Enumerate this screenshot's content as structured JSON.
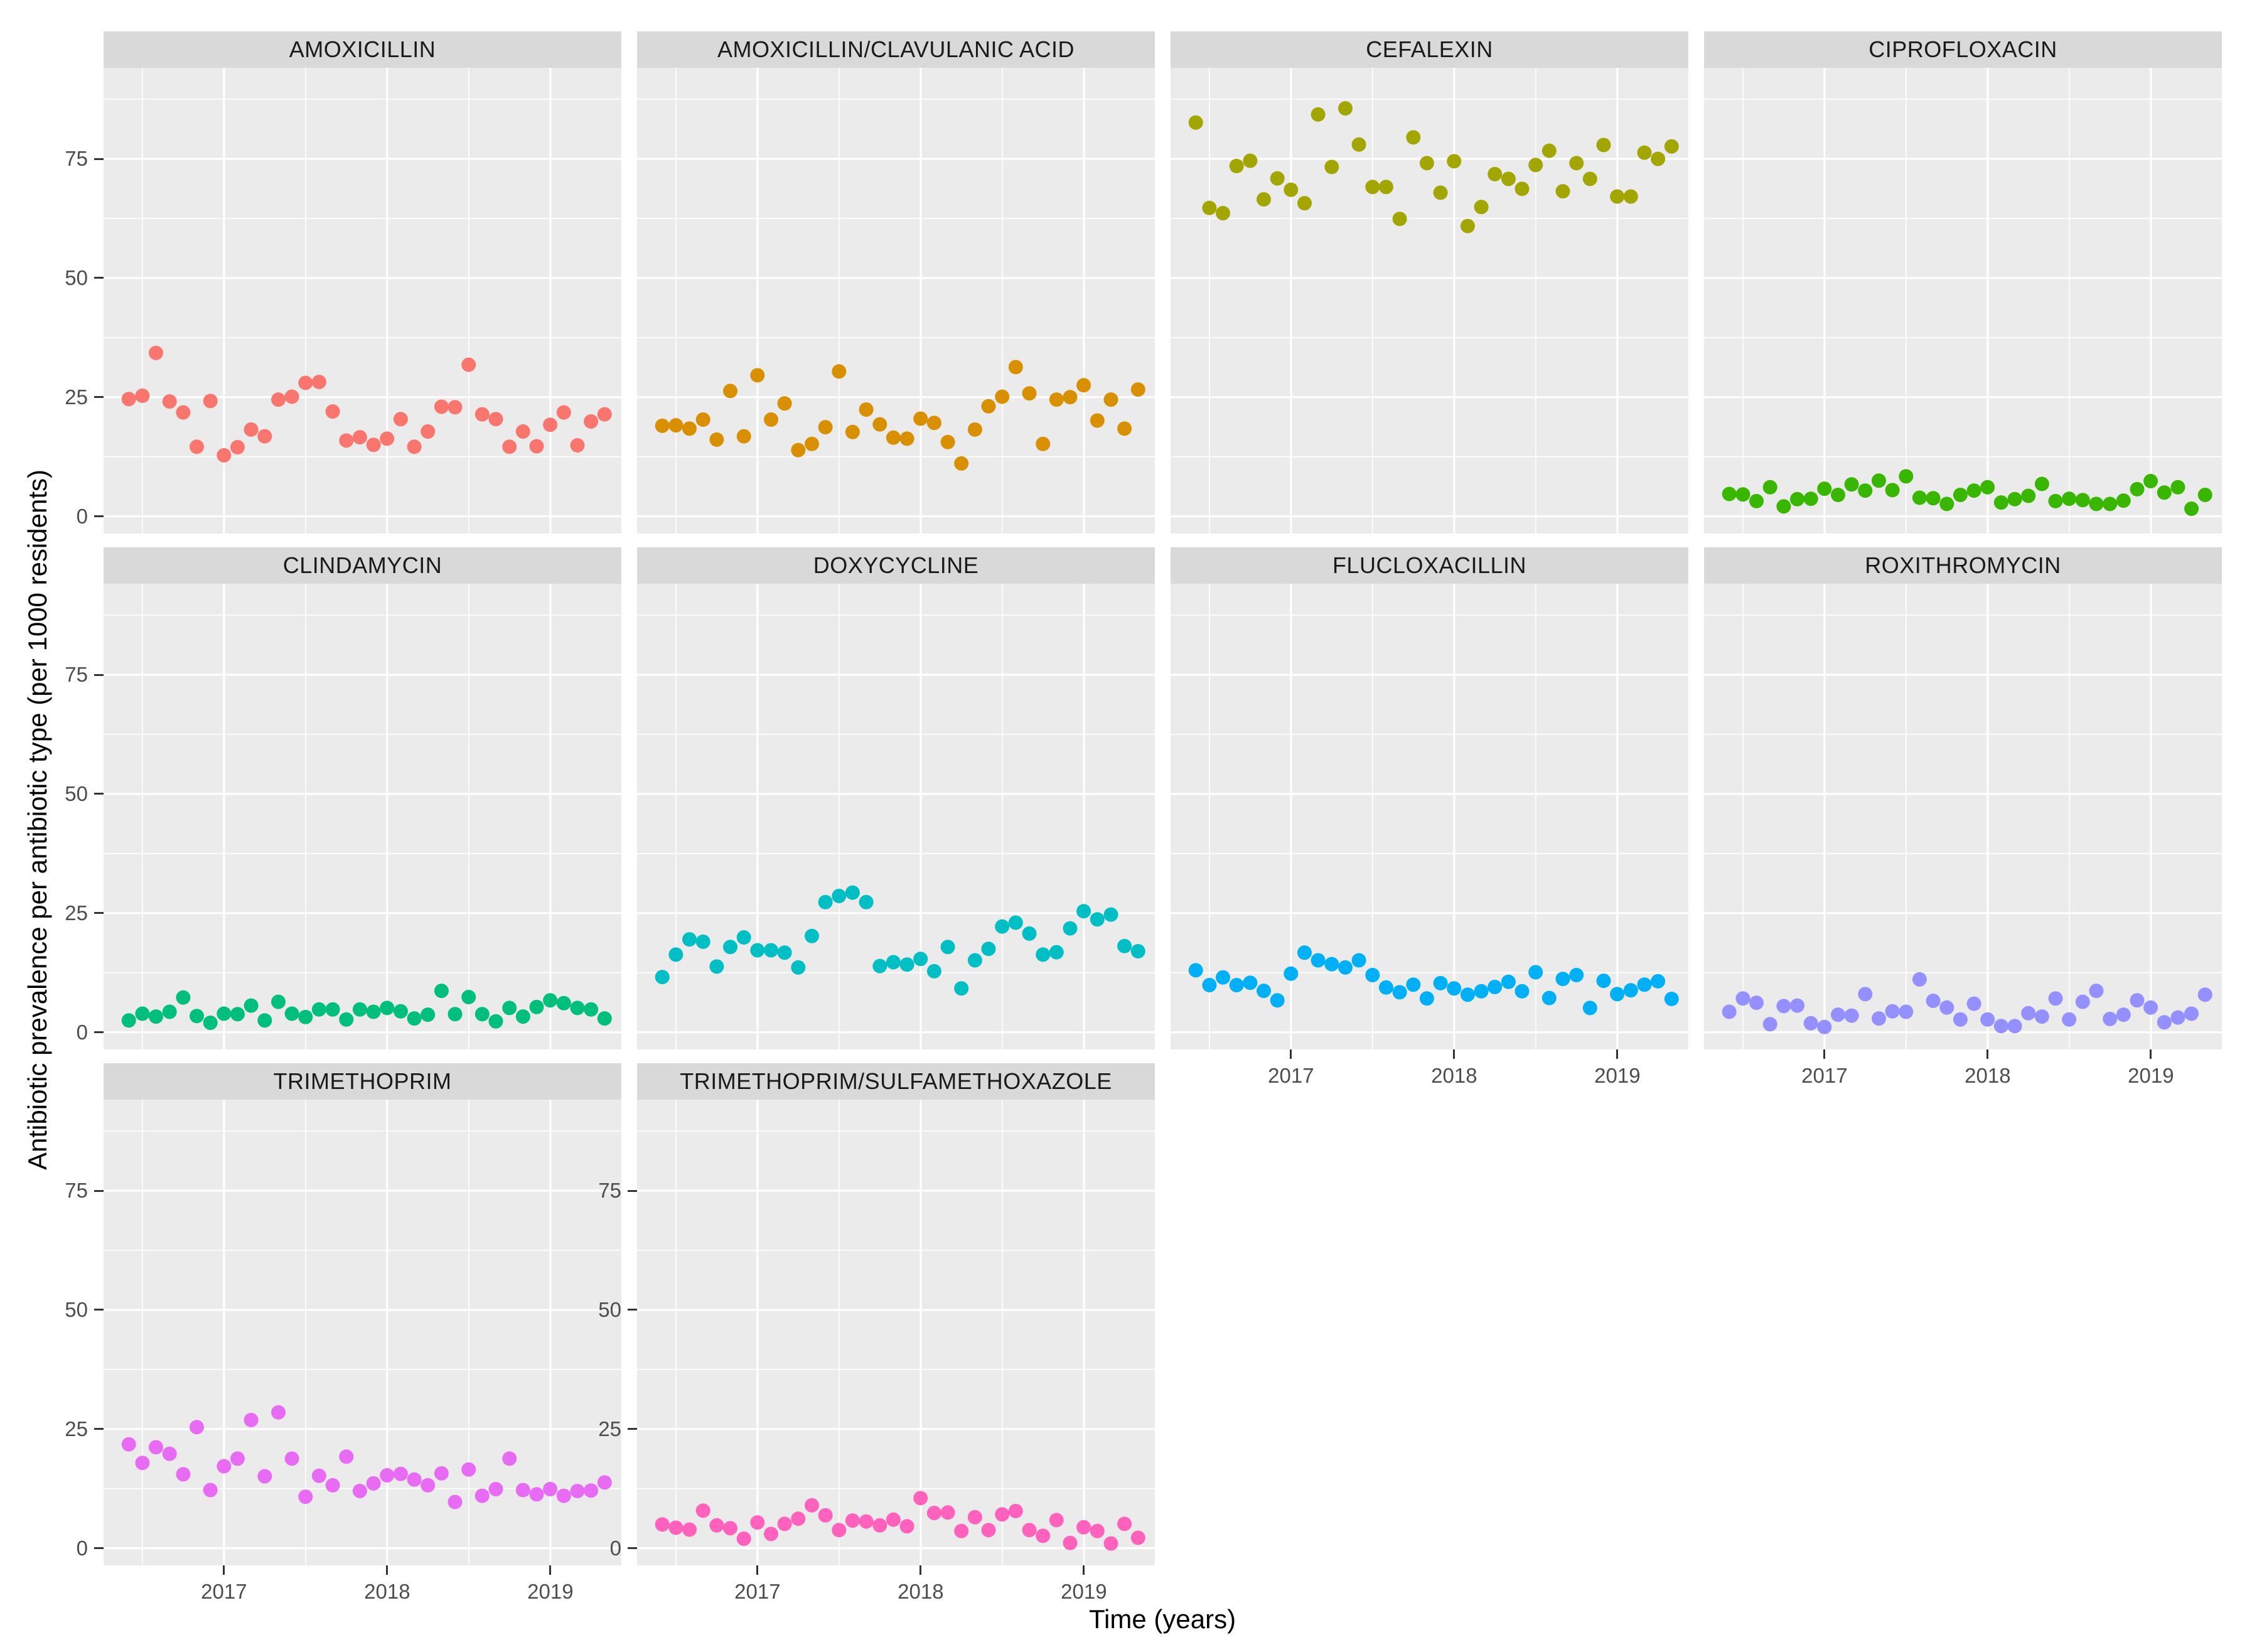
{
  "chart_data": {
    "type": "scatter",
    "title": "",
    "xlabel": "Time (years)",
    "ylabel": "Antibiotic prevalence per antibiotic type (per 1000 residents)",
    "x_description": "monthly observations from mid-2016 to mid-2019",
    "x_start": 2016.4167,
    "x_step": 0.0833,
    "xlim": [
      2016.262,
      2019.435
    ],
    "ylim": [
      -3.6,
      94.1
    ],
    "x_ticks": [
      {
        "value": 2017,
        "label": "2017"
      },
      {
        "value": 2018,
        "label": "2018"
      },
      {
        "value": 2019,
        "label": "2019"
      }
    ],
    "x_minor_ticks": [
      2016.5,
      2017.5,
      2018.5
    ],
    "y_ticks": [
      {
        "value": 0,
        "label": "0"
      },
      {
        "value": 25,
        "label": "25"
      },
      {
        "value": 50,
        "label": "50"
      },
      {
        "value": 75,
        "label": "75"
      }
    ],
    "y_minor_ticks": [
      12.5,
      37.5,
      62.5,
      87.5
    ],
    "grid": "white major and minor gridlines on gray panels",
    "legend": "none",
    "facets": [
      {
        "label": "AMOXICILLIN",
        "color": "#F8766D",
        "col": 0,
        "row": 0,
        "show_x_axis": false,
        "show_y_axis": true,
        "values": [
          24.6,
          25.3,
          34.3,
          24.1,
          21.8,
          14.6,
          24.2,
          12.8,
          14.5,
          18.2,
          16.8,
          24.5,
          25.1,
          28.0,
          28.2,
          22.0,
          15.9,
          16.6,
          15.0,
          16.3,
          20.4,
          14.6,
          17.8,
          23.0,
          22.9,
          31.8,
          21.4,
          20.4,
          14.6,
          17.8,
          14.7,
          19.2,
          21.8,
          14.9,
          19.9,
          21.4
        ]
      },
      {
        "label": "AMOXICILLIN/CLAVULANIC ACID",
        "color": "#D89000",
        "col": 1,
        "row": 0,
        "show_x_axis": false,
        "show_y_axis": false,
        "values": [
          19.0,
          19.1,
          18.4,
          20.3,
          16.1,
          26.3,
          16.8,
          29.6,
          20.3,
          23.7,
          13.9,
          15.2,
          18.7,
          30.4,
          17.7,
          22.4,
          19.3,
          16.5,
          16.3,
          20.5,
          19.6,
          15.6,
          11.1,
          18.2,
          23.1,
          25.1,
          31.3,
          25.8,
          15.2,
          24.5,
          25.0,
          27.5,
          20.1,
          24.5,
          18.4,
          26.6
        ]
      },
      {
        "label": "CEFALEXIN",
        "color": "#A3A500",
        "col": 2,
        "row": 0,
        "show_x_axis": false,
        "show_y_axis": false,
        "values": [
          82.6,
          64.7,
          63.6,
          73.5,
          74.6,
          66.5,
          70.9,
          68.5,
          65.7,
          84.3,
          73.3,
          85.6,
          78.0,
          69.1,
          69.1,
          62.4,
          79.5,
          74.1,
          67.9,
          74.5,
          60.9,
          64.9,
          71.8,
          70.8,
          68.7,
          73.7,
          76.7,
          68.2,
          74.1,
          70.8,
          77.9,
          67.1,
          67.1,
          76.3,
          75.0,
          77.6
        ]
      },
      {
        "label": "CIPROFLOXACIN",
        "color": "#39B600",
        "col": 3,
        "row": 0,
        "show_x_axis": false,
        "show_y_axis": false,
        "values": [
          4.7,
          4.6,
          3.2,
          6.1,
          2.1,
          3.6,
          3.7,
          5.8,
          4.5,
          6.7,
          5.4,
          7.5,
          5.5,
          8.4,
          3.9,
          3.8,
          2.6,
          4.5,
          5.4,
          6.1,
          2.9,
          3.6,
          4.3,
          6.8,
          3.2,
          3.7,
          3.4,
          2.6,
          2.6,
          3.3,
          5.7,
          7.4,
          5.0,
          6.1,
          1.6,
          4.5
        ]
      },
      {
        "label": "CLINDAMYCIN",
        "color": "#00BF7D",
        "col": 0,
        "row": 1,
        "show_x_axis": false,
        "show_y_axis": true,
        "values": [
          2.5,
          3.9,
          3.3,
          4.3,
          7.3,
          3.4,
          2.0,
          3.9,
          3.8,
          5.6,
          2.5,
          6.4,
          3.9,
          3.2,
          4.8,
          4.8,
          2.7,
          4.8,
          4.3,
          5.1,
          4.4,
          2.9,
          3.7,
          8.7,
          3.8,
          7.4,
          3.8,
          2.3,
          5.1,
          3.3,
          5.3,
          6.7,
          6.1,
          5.1,
          4.8,
          2.9
        ]
      },
      {
        "label": "DOXYCYCLINE",
        "color": "#00BFC4",
        "col": 1,
        "row": 1,
        "show_x_axis": false,
        "show_y_axis": false,
        "values": [
          11.6,
          16.3,
          19.5,
          19.0,
          13.8,
          17.9,
          19.9,
          17.2,
          17.2,
          16.7,
          13.6,
          20.2,
          27.3,
          28.6,
          29.3,
          27.3,
          13.9,
          14.7,
          14.2,
          15.4,
          12.8,
          17.9,
          9.2,
          15.1,
          17.5,
          22.2,
          23.0,
          20.7,
          16.3,
          16.8,
          21.8,
          25.4,
          23.7,
          24.7,
          18.1,
          17.0
        ]
      },
      {
        "label": "FLUCLOXACILLIN",
        "color": "#00B0F6",
        "col": 2,
        "row": 1,
        "show_x_axis": true,
        "show_y_axis": false,
        "values": [
          13.0,
          9.9,
          11.5,
          9.9,
          10.4,
          8.7,
          6.7,
          12.3,
          16.7,
          15.1,
          14.3,
          13.6,
          15.1,
          12.0,
          9.4,
          8.4,
          10.0,
          7.1,
          10.3,
          9.2,
          7.9,
          8.6,
          9.5,
          10.6,
          8.6,
          12.6,
          7.2,
          11.2,
          12.0,
          5.1,
          10.8,
          8.0,
          8.8,
          10.0,
          10.7,
          7.0
        ]
      },
      {
        "label": "ROXITHROMYCIN",
        "color": "#9590FF",
        "col": 3,
        "row": 1,
        "show_x_axis": true,
        "show_y_axis": false,
        "values": [
          4.3,
          7.1,
          6.2,
          1.7,
          5.5,
          5.6,
          1.9,
          1.1,
          3.7,
          3.5,
          8.0,
          2.9,
          4.4,
          4.3,
          11.1,
          6.6,
          5.2,
          2.7,
          6.0,
          2.7,
          1.3,
          1.3,
          4.0,
          3.3,
          7.1,
          2.7,
          6.4,
          8.7,
          2.8,
          3.7,
          6.7,
          5.2,
          2.1,
          3.1,
          3.9,
          7.9
        ]
      },
      {
        "label": "TRIMETHOPRIM",
        "color": "#E76BF3",
        "col": 0,
        "row": 2,
        "show_x_axis": true,
        "show_y_axis": true,
        "values": [
          21.8,
          17.9,
          21.2,
          19.8,
          15.5,
          25.4,
          12.2,
          17.2,
          18.8,
          26.9,
          15.1,
          28.5,
          18.8,
          10.8,
          15.2,
          13.2,
          19.2,
          12.0,
          13.6,
          15.3,
          15.6,
          14.4,
          13.2,
          15.7,
          9.7,
          16.5,
          11.0,
          12.4,
          18.8,
          12.2,
          11.3,
          12.4,
          11.0,
          12.0,
          12.1,
          13.8
        ]
      },
      {
        "label": "TRIMETHOPRIM/SULFAMETHOXAZOLE",
        "color": "#FF62BC",
        "col": 1,
        "row": 2,
        "show_x_axis": true,
        "show_y_axis": true,
        "values": [
          5.0,
          4.3,
          3.9,
          7.9,
          4.8,
          4.2,
          2.0,
          5.4,
          3.0,
          5.1,
          6.2,
          9.0,
          6.9,
          3.8,
          5.8,
          5.6,
          4.8,
          6.0,
          4.6,
          10.5,
          7.4,
          7.5,
          3.6,
          6.5,
          3.8,
          7.1,
          7.8,
          3.8,
          2.6,
          5.9,
          1.1,
          4.4,
          3.6,
          1.0,
          5.1,
          2.2
        ]
      }
    ]
  },
  "colors": {
    "page_bg": "#FFFFFF",
    "panel_bg": "#EBEBEB",
    "strip_bg": "#D9D9D9",
    "gridline": "#FFFFFF",
    "tick_text": "#4D4D4D",
    "strip_text": "#1A1A1A",
    "axis_title_text": "#000000",
    "tick_mark": "#333333"
  }
}
